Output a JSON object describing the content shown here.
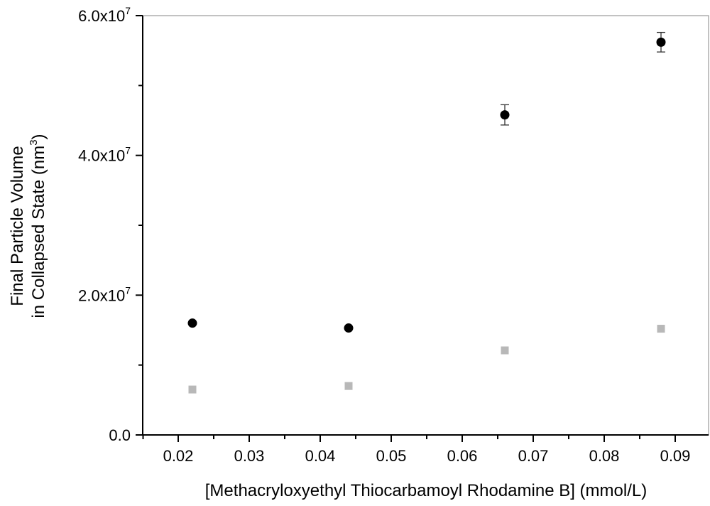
{
  "chart_data": {
    "type": "scatter",
    "title": "",
    "xlabel": "[Methacryloxyethyl Thiocarbamoyl Rhodamine B] (mmol/L)",
    "ylabel_line1": "Final Particle Volume",
    "ylabel_line2": "in Collapsed State (nm",
    "ylabel_sup": "3",
    "ylabel_close": ")",
    "xlim": [
      0.015,
      0.0947
    ],
    "ylim": [
      0,
      60000000
    ],
    "xticks": [
      0.02,
      0.03,
      0.04,
      0.05,
      0.06,
      0.07,
      0.08,
      0.09
    ],
    "xtick_labels": [
      "0.02",
      "0.03",
      "0.04",
      "0.05",
      "0.06",
      "0.07",
      "0.08",
      "0.09"
    ],
    "yticks": [
      0,
      20000000,
      40000000,
      60000000
    ],
    "ytick_labels": [
      {
        "mant": "0.0",
        "exp": ""
      },
      {
        "mant": "2.0x10",
        "exp": "7"
      },
      {
        "mant": "4.0x10",
        "exp": "7"
      },
      {
        "mant": "6.0x10",
        "exp": "7"
      }
    ],
    "grid": false,
    "series": [
      {
        "name": "black-circles",
        "marker": "circle",
        "color": "#000000",
        "x": [
          0.022,
          0.044,
          0.066,
          0.088
        ],
        "y": [
          16000000,
          15300000,
          45800000,
          56200000
        ],
        "err": [
          0,
          0,
          1450000,
          1400000
        ]
      },
      {
        "name": "gray-squares",
        "marker": "square",
        "color": "#b8b8b8",
        "x": [
          0.022,
          0.044,
          0.066,
          0.088
        ],
        "y": [
          6500000,
          7000000,
          12100000,
          15200000
        ],
        "err": [
          0,
          0,
          0,
          0
        ]
      }
    ]
  }
}
